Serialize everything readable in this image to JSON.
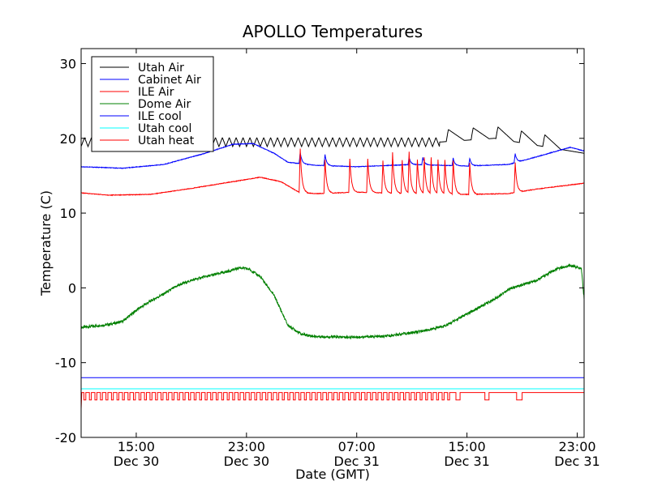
{
  "chart_data": {
    "type": "line",
    "title": "APOLLO Temperatures",
    "xlabel": "Date (GMT)",
    "ylabel": "Temperature (C)",
    "ylim": [
      -20,
      32
    ],
    "xlim_hours": [
      -4,
      32.5
    ],
    "yticks": [
      -20,
      -10,
      0,
      10,
      20,
      30
    ],
    "xticks": [
      {
        "x": 0,
        "time": "15:00",
        "date": "Dec 30"
      },
      {
        "x": 8,
        "time": "23:00",
        "date": "Dec 30"
      },
      {
        "x": 16,
        "time": "07:00",
        "date": "Dec 31"
      },
      {
        "x": 24,
        "time": "15:00",
        "date": "Dec 31"
      },
      {
        "x": 32,
        "time": "23:00",
        "date": "Dec 31"
      }
    ],
    "legend_position": "top-left",
    "series": [
      {
        "name": "Utah Air",
        "color": "#000000",
        "kind": "utah_air",
        "base_points": [
          [
            -4,
            19.5
          ],
          [
            14,
            19.5
          ],
          [
            22,
            19.5
          ],
          [
            26,
            20
          ],
          [
            32.5,
            18
          ]
        ],
        "osc_amplitude": 0.6,
        "osc_period": 0.5,
        "osc_until": 22
      },
      {
        "name": "Cabinet Air",
        "color": "#0000ff",
        "kind": "base",
        "base_points": [
          [
            -4,
            16.2
          ],
          [
            -1,
            16
          ],
          [
            2,
            16.5
          ],
          [
            5,
            18
          ],
          [
            7,
            19.2
          ],
          [
            8.5,
            19.3
          ],
          [
            10,
            18
          ],
          [
            11,
            16.8
          ],
          [
            13,
            16.4
          ],
          [
            16,
            16.2
          ],
          [
            20,
            16.5
          ],
          [
            24,
            16.3
          ],
          [
            27,
            16.5
          ],
          [
            29,
            17.5
          ],
          [
            31.5,
            18.8
          ],
          [
            32.5,
            18.3
          ]
        ],
        "spikes": [
          [
            11.9,
            1.5
          ],
          [
            13.7,
            1.5
          ],
          [
            19.8,
            1.0
          ],
          [
            20.8,
            1.0
          ],
          [
            23.0,
            1.0
          ],
          [
            24.2,
            1.0
          ],
          [
            27.5,
            1.2
          ]
        ]
      },
      {
        "name": "ILE Air",
        "color": "#ff0000",
        "kind": "base",
        "base_points": [
          [
            -4,
            12.7
          ],
          [
            -2,
            12.4
          ],
          [
            1,
            12.5
          ],
          [
            4,
            13.3
          ],
          [
            7,
            14.2
          ],
          [
            9,
            14.8
          ],
          [
            10.5,
            14.2
          ],
          [
            11.8,
            12.8
          ],
          [
            13,
            12.6
          ],
          [
            16,
            12.8
          ],
          [
            20,
            12.6
          ],
          [
            24,
            12.5
          ],
          [
            27,
            12.6
          ],
          [
            29,
            13.2
          ],
          [
            32.5,
            14
          ]
        ],
        "spikes": [
          [
            11.9,
            5.8
          ],
          [
            13.7,
            4.5
          ],
          [
            15.5,
            4.5
          ],
          [
            16.8,
            4.5
          ],
          [
            17.9,
            4.3
          ],
          [
            18.6,
            5.5
          ],
          [
            19.3,
            4.5
          ],
          [
            19.8,
            5.5
          ],
          [
            20.4,
            4.6
          ],
          [
            20.9,
            4.8
          ],
          [
            21.4,
            4.8
          ],
          [
            21.9,
            4.5
          ],
          [
            22.4,
            4.5
          ],
          [
            23.0,
            4.5
          ],
          [
            24.2,
            4.2
          ],
          [
            27.5,
            4.0
          ]
        ]
      },
      {
        "name": "Dome Air",
        "color": "#008000",
        "kind": "base",
        "base_points": [
          [
            -4,
            -5.3
          ],
          [
            -3,
            -5.1
          ],
          [
            -2,
            -4.9
          ],
          [
            -1,
            -4.5
          ],
          [
            0,
            -3
          ],
          [
            1,
            -1.8
          ],
          [
            2,
            -0.8
          ],
          [
            3,
            0.3
          ],
          [
            4,
            1
          ],
          [
            5,
            1.5
          ],
          [
            6,
            1.9
          ],
          [
            7,
            2.4
          ],
          [
            7.5,
            2.7
          ],
          [
            8.2,
            2.5
          ],
          [
            9,
            1.5
          ],
          [
            10,
            -1
          ],
          [
            11,
            -5
          ],
          [
            12,
            -6.2
          ],
          [
            13,
            -6.5
          ],
          [
            15,
            -6.6
          ],
          [
            18,
            -6.5
          ],
          [
            20,
            -6.0
          ],
          [
            21.5,
            -5.5
          ],
          [
            22.5,
            -5.0
          ],
          [
            24,
            -3.5
          ],
          [
            26,
            -1.5
          ],
          [
            27,
            -0.2
          ],
          [
            29,
            1
          ],
          [
            30.5,
            2.5
          ],
          [
            31.5,
            3
          ],
          [
            32.3,
            2.6
          ],
          [
            32.5,
            -1.5
          ]
        ]
      },
      {
        "name": "ILE cool",
        "color": "#0000ff",
        "kind": "flat",
        "value": -12
      },
      {
        "name": "Utah cool",
        "color": "#00ffff",
        "kind": "flat",
        "value": -13.5
      },
      {
        "name": "Utah heat",
        "color": "#ff0000",
        "kind": "utah_heat",
        "low": -15,
        "high": -14,
        "pulse_period": 0.4,
        "pulse_until": 22.7,
        "extra_dips": [
          [
            23.2,
            23.5
          ],
          [
            25.3,
            25.6
          ],
          [
            27.6,
            28.0
          ]
        ]
      }
    ]
  }
}
